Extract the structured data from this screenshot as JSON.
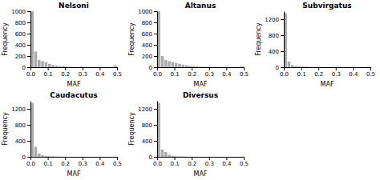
{
  "chart_data": [
    {
      "type": "histogram",
      "title": "Nelsoni",
      "x_label": "MAF",
      "y_label": "Frequency",
      "color": "#aaaaaa",
      "bins": [
        0,
        0.02,
        0.04,
        0.06,
        0.08,
        0.1,
        0.12,
        0.14,
        0.16,
        0.18,
        0.2,
        0.22,
        0.24,
        0.26,
        0.28,
        0.3,
        0.32,
        0.34,
        0.36,
        0.38,
        0.4,
        0.42,
        0.44,
        0.46,
        0.48,
        0.5
      ],
      "values": [
        1000,
        280,
        130,
        110,
        90,
        60,
        40,
        30,
        20,
        25,
        15,
        10,
        8,
        5,
        8,
        5,
        3,
        2,
        4,
        3,
        5,
        2,
        3,
        1,
        30
      ],
      "xlim": [
        0,
        0.5
      ],
      "xticks": [
        {
          "value": 0,
          "label": "0.0"
        },
        0.1,
        0.2,
        0.3,
        0.4,
        0.5
      ],
      "ylim": [
        0,
        1000
      ],
      "yticks": [
        0,
        200,
        400,
        600,
        800,
        1000
      ]
    },
    {
      "type": "histogram",
      "title": "Altanus",
      "x_label": "MAF",
      "y_label": "Frequency",
      "color": "#aaaaaa",
      "bins": [
        0,
        0.02,
        0.04,
        0.06,
        0.08,
        0.1,
        0.12,
        0.14,
        0.16,
        0.18,
        0.2,
        0.22,
        0.24,
        0.26,
        0.28,
        0.3,
        0.32,
        0.34,
        0.36,
        0.38,
        0.4,
        0.42,
        0.44,
        0.46,
        0.48,
        0.5
      ],
      "values": [
        1000,
        200,
        130,
        110,
        90,
        75,
        60,
        45,
        35,
        25,
        20,
        15,
        10,
        8,
        5,
        6,
        4,
        3,
        5,
        3,
        2,
        2,
        3,
        1,
        20
      ],
      "xlim": [
        0,
        0.5
      ],
      "xticks": [
        {
          "value": 0,
          "label": "0.0"
        },
        0.1,
        0.2,
        0.3,
        0.4,
        0.5
      ],
      "ylim": [
        0,
        1000
      ],
      "yticks": [
        0,
        200,
        400,
        600,
        800,
        1000
      ]
    },
    {
      "type": "histogram",
      "title": "Subvirgatus",
      "x_label": "MAF",
      "y_label": "Frequency",
      "color": "#aaaaaa",
      "bins": [
        0,
        0.02,
        0.04,
        0.06,
        0.08,
        0.1,
        0.12,
        0.14,
        0.16,
        0.18,
        0.2,
        0.22,
        0.24,
        0.26,
        0.28,
        0.3,
        0.32,
        0.34,
        0.36,
        0.38,
        0.4,
        0.42,
        0.44,
        0.46,
        0.48,
        0.5
      ],
      "values": [
        1350,
        140,
        50,
        30,
        25,
        20,
        15,
        10,
        8,
        6,
        4,
        3,
        5,
        2,
        3,
        1,
        2,
        1,
        2,
        1,
        2,
        1,
        1,
        1,
        15
      ],
      "xlim": [
        0,
        0.5
      ],
      "xticks": [
        {
          "value": 0,
          "label": "0.0"
        },
        0.1,
        0.2,
        0.3,
        0.4,
        0.5
      ],
      "ylim": [
        0,
        1400
      ],
      "yticks": [
        0,
        400,
        800,
        1200
      ]
    },
    {
      "type": "histogram",
      "title": "Caudacutus",
      "x_label": "MAF",
      "y_label": "Frequency",
      "color": "#aaaaaa",
      "bins": [
        0,
        0.02,
        0.04,
        0.06,
        0.08,
        0.1,
        0.12,
        0.14,
        0.16,
        0.18,
        0.2,
        0.22,
        0.24,
        0.26,
        0.28,
        0.3,
        0.32,
        0.34,
        0.36,
        0.38,
        0.4,
        0.42,
        0.44,
        0.46,
        0.48,
        0.5
      ],
      "values": [
        1350,
        250,
        80,
        40,
        25,
        15,
        12,
        8,
        5,
        3,
        2,
        2,
        1,
        1,
        1,
        1,
        1,
        1,
        1,
        1,
        1,
        1,
        1,
        1,
        5
      ],
      "xlim": [
        0,
        0.5
      ],
      "xticks": [
        {
          "value": 0,
          "label": "0.0"
        },
        0.1,
        0.2,
        0.3,
        0.4,
        0.5
      ],
      "ylim": [
        0,
        1400
      ],
      "yticks": [
        0,
        400,
        800,
        1200
      ]
    },
    {
      "type": "histogram",
      "title": "Diversus",
      "x_label": "MAF",
      "y_label": "Frequency",
      "color": "#aaaaaa",
      "bins": [
        0,
        0.02,
        0.04,
        0.06,
        0.08,
        0.1,
        0.12,
        0.14,
        0.16,
        0.18,
        0.2,
        0.22,
        0.24,
        0.26,
        0.28,
        0.3,
        0.32,
        0.34,
        0.36,
        0.38,
        0.4,
        0.42,
        0.44,
        0.46,
        0.48,
        0.5
      ],
      "values": [
        1350,
        180,
        120,
        50,
        25,
        15,
        10,
        8,
        5,
        4,
        3,
        2,
        2,
        1,
        1,
        1,
        1,
        1,
        1,
        1,
        1,
        1,
        1,
        1,
        5
      ],
      "xlim": [
        0,
        0.5
      ],
      "xticks": [
        {
          "value": 0,
          "label": "0.0"
        },
        0.1,
        0.2,
        0.3,
        0.4,
        0.5
      ],
      "ylim": [
        0,
        1400
      ],
      "yticks": [
        0,
        400,
        800,
        1200
      ]
    }
  ]
}
